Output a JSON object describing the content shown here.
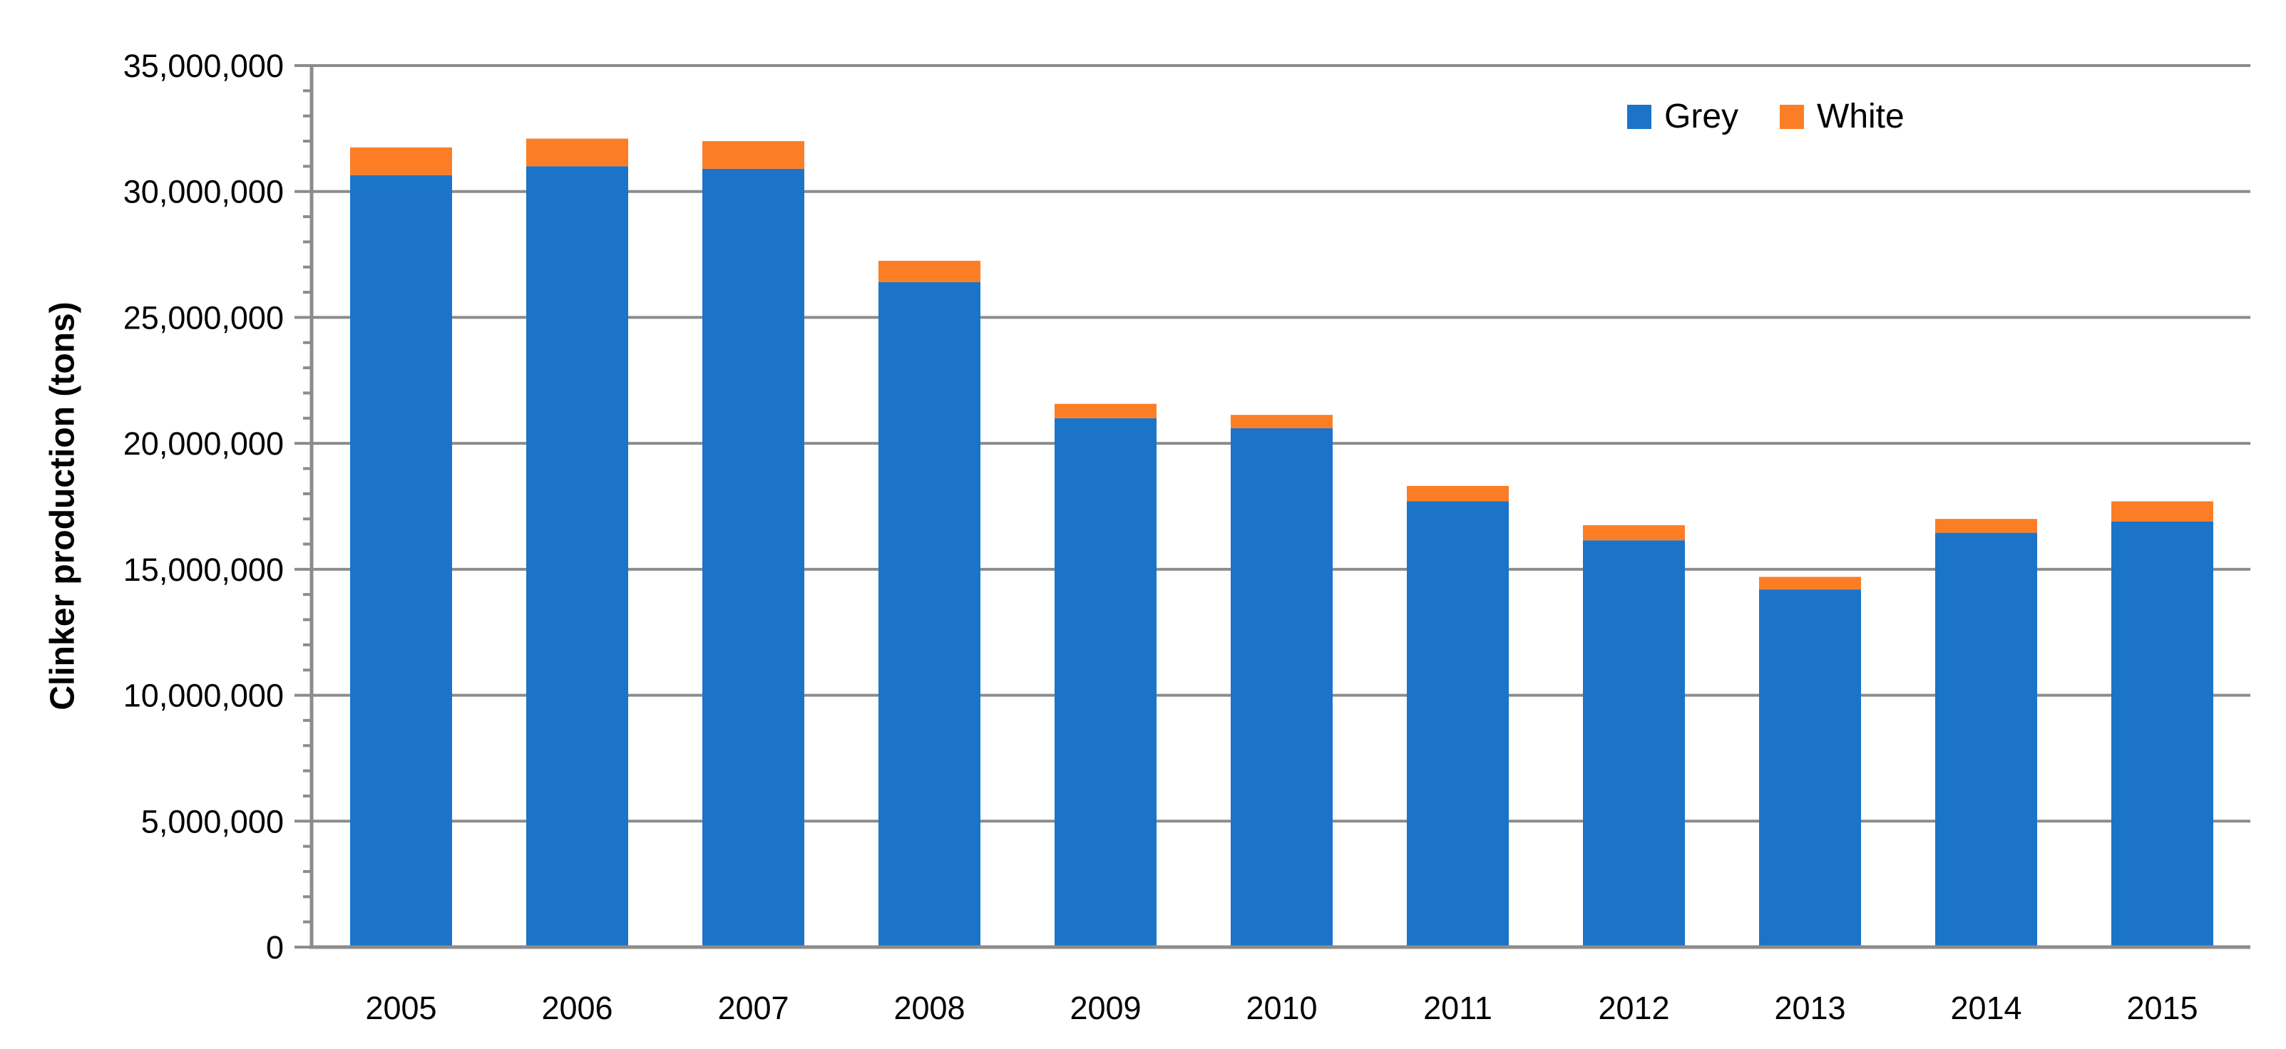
{
  "chart_data": {
    "type": "bar",
    "stacked": true,
    "title": "",
    "xlabel": "",
    "ylabel": "Clinker production (tons)",
    "categories": [
      "2005",
      "2006",
      "2007",
      "2008",
      "2009",
      "2010",
      "2011",
      "2012",
      "2013",
      "2014",
      "2015"
    ],
    "series": [
      {
        "name": "Grey",
        "color": "#1B74C8",
        "values": [
          30650000,
          31000000,
          30900000,
          26400000,
          21000000,
          20600000,
          17700000,
          16150000,
          14200000,
          16450000,
          16900000
        ]
      },
      {
        "name": "White",
        "color": "#FB7E27",
        "values": [
          1100000,
          1100000,
          1100000,
          850000,
          570000,
          530000,
          610000,
          600000,
          500000,
          550000,
          800000
        ]
      }
    ],
    "ylim": [
      0,
      35000000
    ],
    "y_major_step": 5000000,
    "y_minor_step": 1000000,
    "y_tick_labels": [
      "0",
      "5,000,000",
      "10,000,000",
      "15,000,000",
      "20,000,000",
      "25,000,000",
      "30,000,000",
      "35,000,000"
    ],
    "grid": true,
    "legend_position": "top-right",
    "axis_color": "#8C8C8C",
    "grid_color": "#8C8C8C",
    "text_color": "#000000"
  }
}
